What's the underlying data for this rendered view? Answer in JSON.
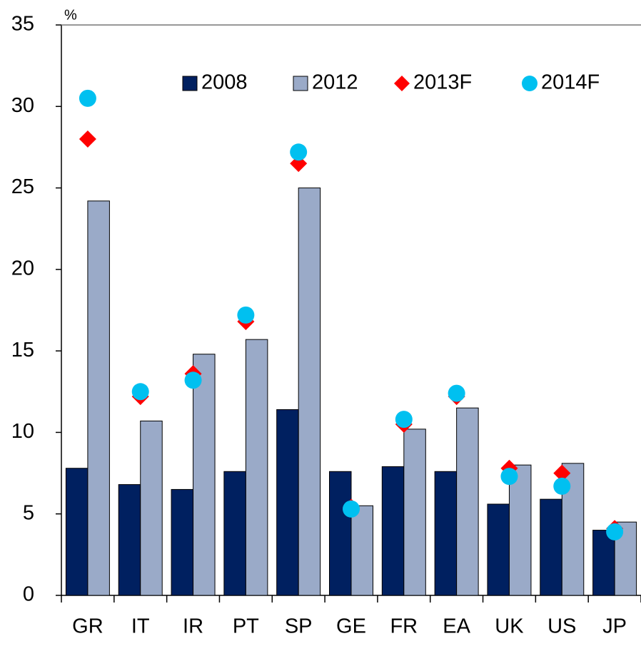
{
  "chart_data": {
    "type": "bar",
    "y_label": "%",
    "categories": [
      "GR",
      "IT",
      "IR",
      "PT",
      "SP",
      "GE",
      "FR",
      "EA",
      "UK",
      "US",
      "JP"
    ],
    "series": [
      {
        "name": "2008",
        "color": "#002060",
        "values": [
          7.8,
          6.8,
          6.5,
          7.6,
          11.4,
          7.6,
          7.9,
          7.6,
          5.6,
          5.9,
          4.0
        ]
      },
      {
        "name": "2012",
        "color": "#9aaac8",
        "values": [
          24.2,
          10.7,
          14.8,
          15.7,
          25.0,
          5.5,
          10.2,
          11.5,
          8.0,
          8.1,
          4.5
        ]
      },
      {
        "name": "2013F",
        "color": "#ff0000",
        "marker": "diamond",
        "values": [
          28.0,
          12.2,
          13.6,
          16.8,
          26.5,
          5.4,
          10.5,
          12.2,
          7.8,
          7.5,
          4.1
        ]
      },
      {
        "name": "2014F",
        "color": "#00c0f0",
        "marker": "circle",
        "values": [
          30.5,
          12.5,
          13.2,
          17.2,
          27.2,
          5.3,
          10.8,
          12.4,
          7.3,
          6.7,
          3.9
        ]
      }
    ],
    "ylim": [
      0,
      35
    ],
    "yticks": [
      0,
      5,
      10,
      15,
      20,
      25,
      30,
      35
    ],
    "legend": "top"
  }
}
